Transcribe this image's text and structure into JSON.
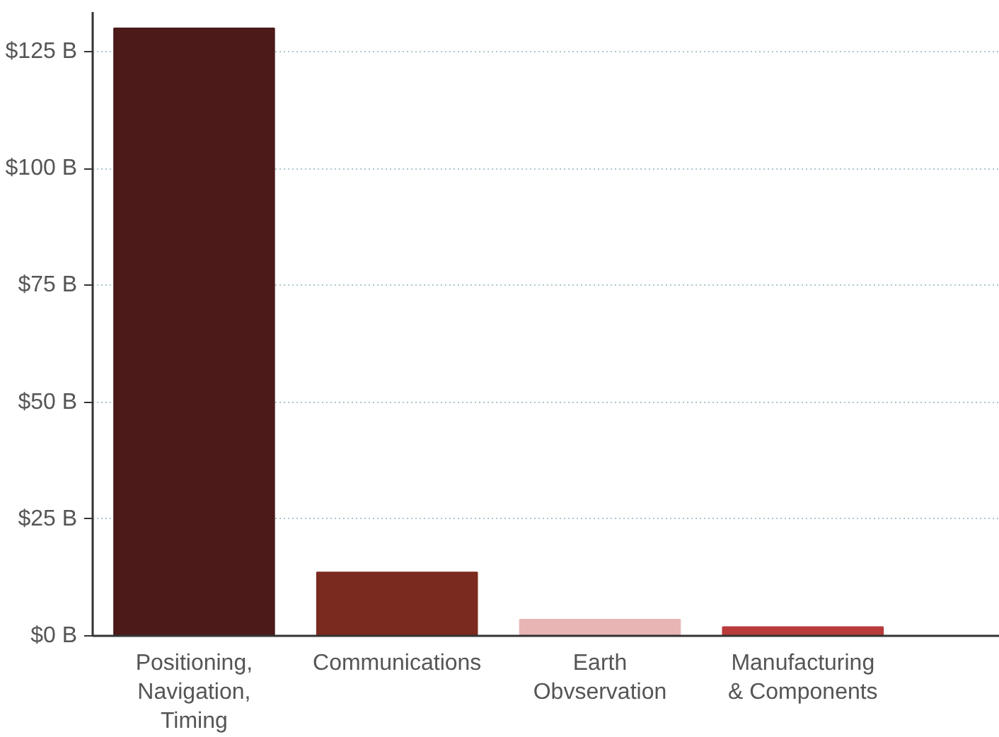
{
  "chart_data": {
    "type": "bar",
    "categories": [
      "Positioning,\nNavigation,\nTiming",
      "Communications",
      "Earth\nObvservation",
      "Manufacturing\n& Components"
    ],
    "values": [
      130,
      13.6,
      3.5,
      1.9
    ],
    "colors": [
      "#4d1a1a",
      "#7a2a1f",
      "#e8b4b4",
      "#b83a3a"
    ],
    "ylim": [
      0,
      133.5
    ],
    "yticks": [
      {
        "value": 0,
        "label": "$0 B"
      },
      {
        "value": 25,
        "label": "$25 B"
      },
      {
        "value": 50,
        "label": "$50 B"
      },
      {
        "value": 75,
        "label": "$75 B"
      },
      {
        "value": 100,
        "label": "$100 B"
      },
      {
        "value": 125,
        "label": "$125 B"
      }
    ],
    "grid": "y"
  }
}
